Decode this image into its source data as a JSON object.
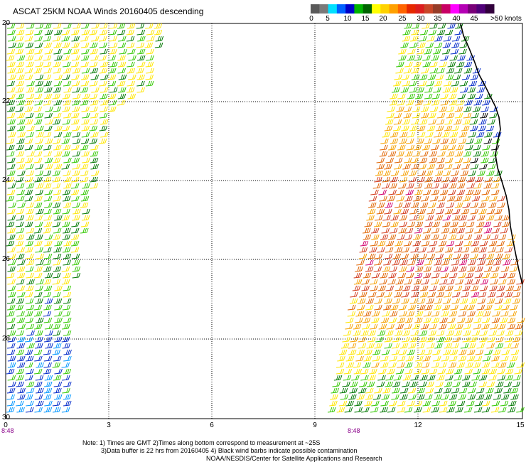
{
  "title": "ASCAT 25KM NOAA Winds 20160405 descending",
  "color_scale": {
    "labels": [
      "0",
      "5",
      "10",
      "15",
      "20",
      "25",
      "30",
      "35",
      "40",
      "45",
      ">50 knots"
    ],
    "colors": [
      "#5a5a5a",
      "#7a7a7a",
      "#00e0ff",
      "#0060ff",
      "#0000c8",
      "#00b400",
      "#006400",
      "#ffff00",
      "#ffd200",
      "#ffa000",
      "#ff6400",
      "#e62800",
      "#dc1e1e",
      "#c84628",
      "#963c28",
      "#c80064",
      "#ff00ff",
      "#b400b4",
      "#780078",
      "#500078",
      "#32003c"
    ]
  },
  "axes": {
    "y_labels": [
      "20",
      "22",
      "24",
      "26",
      "28",
      "30"
    ],
    "x_labels": [
      "0",
      "3",
      "6",
      "9",
      "12",
      "15"
    ]
  },
  "pass_times": [
    "8:48",
    "8:48"
  ],
  "notes": {
    "line1": "Note: 1) Times are GMT 2)Times along bottom correspond to measurement at ~25S",
    "line2": "3)Data buffer is 22 hrs from 20160405 4) Black wind barbs indicate possible contamination",
    "line3": "NOAA/NESDIS/Center for Satellite Applications and Research"
  }
}
